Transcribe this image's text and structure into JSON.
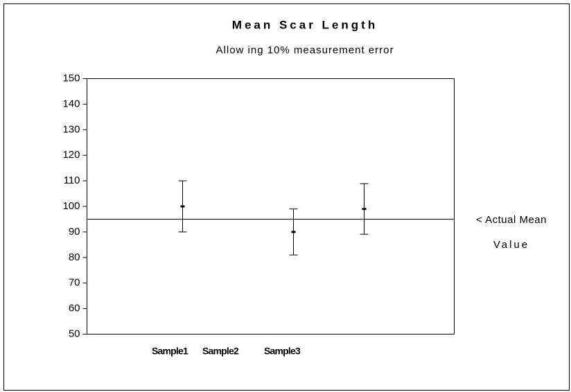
{
  "chart_data": {
    "type": "errorbar",
    "title": "Mean Scar Length",
    "subtitle": "Allow ing 10% measurement error",
    "categories": [
      "Sample1",
      "Sample2",
      "Sample3"
    ],
    "values": [
      100,
      90,
      99
    ],
    "errors": [
      10,
      9,
      9.9
    ],
    "color": "#000000",
    "reference_line": {
      "value": 95,
      "label": [
        "< Actual Mean",
        "Value"
      ]
    },
    "ylim": [
      50,
      150
    ],
    "yticks": [
      50,
      60,
      70,
      80,
      90,
      100,
      110,
      120,
      130,
      140,
      150
    ],
    "grid": false
  }
}
